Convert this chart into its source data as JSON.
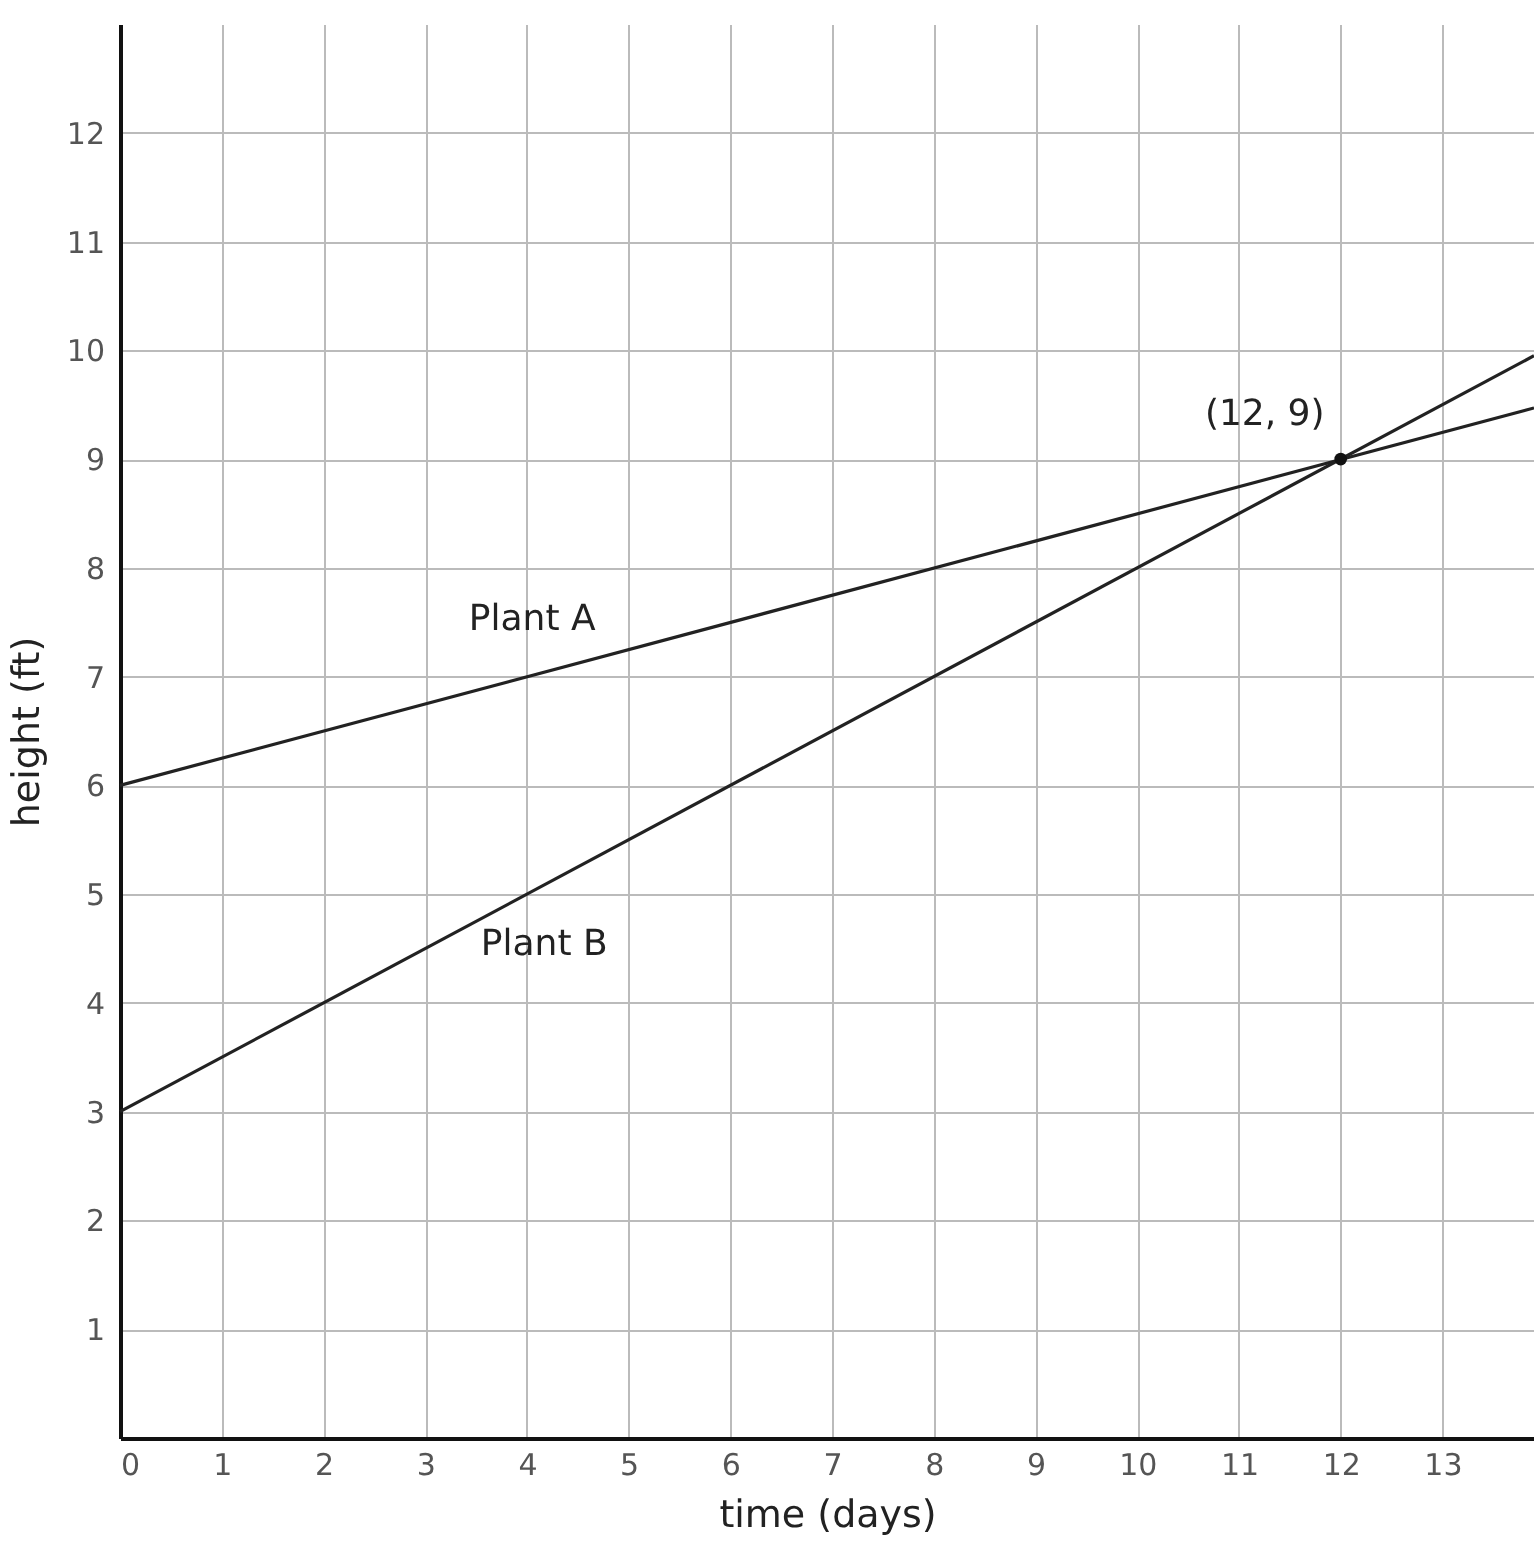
{
  "chart_data": {
    "type": "line",
    "xlabel": "time (days)",
    "ylabel": "height (ft)",
    "xlim": [
      0,
      13.9
    ],
    "ylim": [
      0,
      13
    ],
    "xticks": [
      0,
      1,
      2,
      3,
      4,
      5,
      6,
      7,
      8,
      9,
      10,
      11,
      12,
      13
    ],
    "yticks": [
      1,
      2,
      3,
      4,
      5,
      6,
      7,
      8,
      9,
      10,
      11,
      12
    ],
    "grid": true,
    "line_style": "solid",
    "series": [
      {
        "name": "Plant A",
        "color": "#222222",
        "x": [
          0,
          13.9
        ],
        "values": [
          6,
          9.47
        ]
      },
      {
        "name": "Plant B",
        "color": "#222222",
        "x": [
          0,
          13.9
        ],
        "values": [
          3,
          9.95
        ]
      },
      {
        "type": "scatter",
        "marker": "circle",
        "color": "#111111",
        "x": [
          12
        ],
        "values": [
          9
        ]
      }
    ],
    "annotations": [
      {
        "text": "(12, 9)",
        "x": 12,
        "y": 9
      }
    ]
  }
}
